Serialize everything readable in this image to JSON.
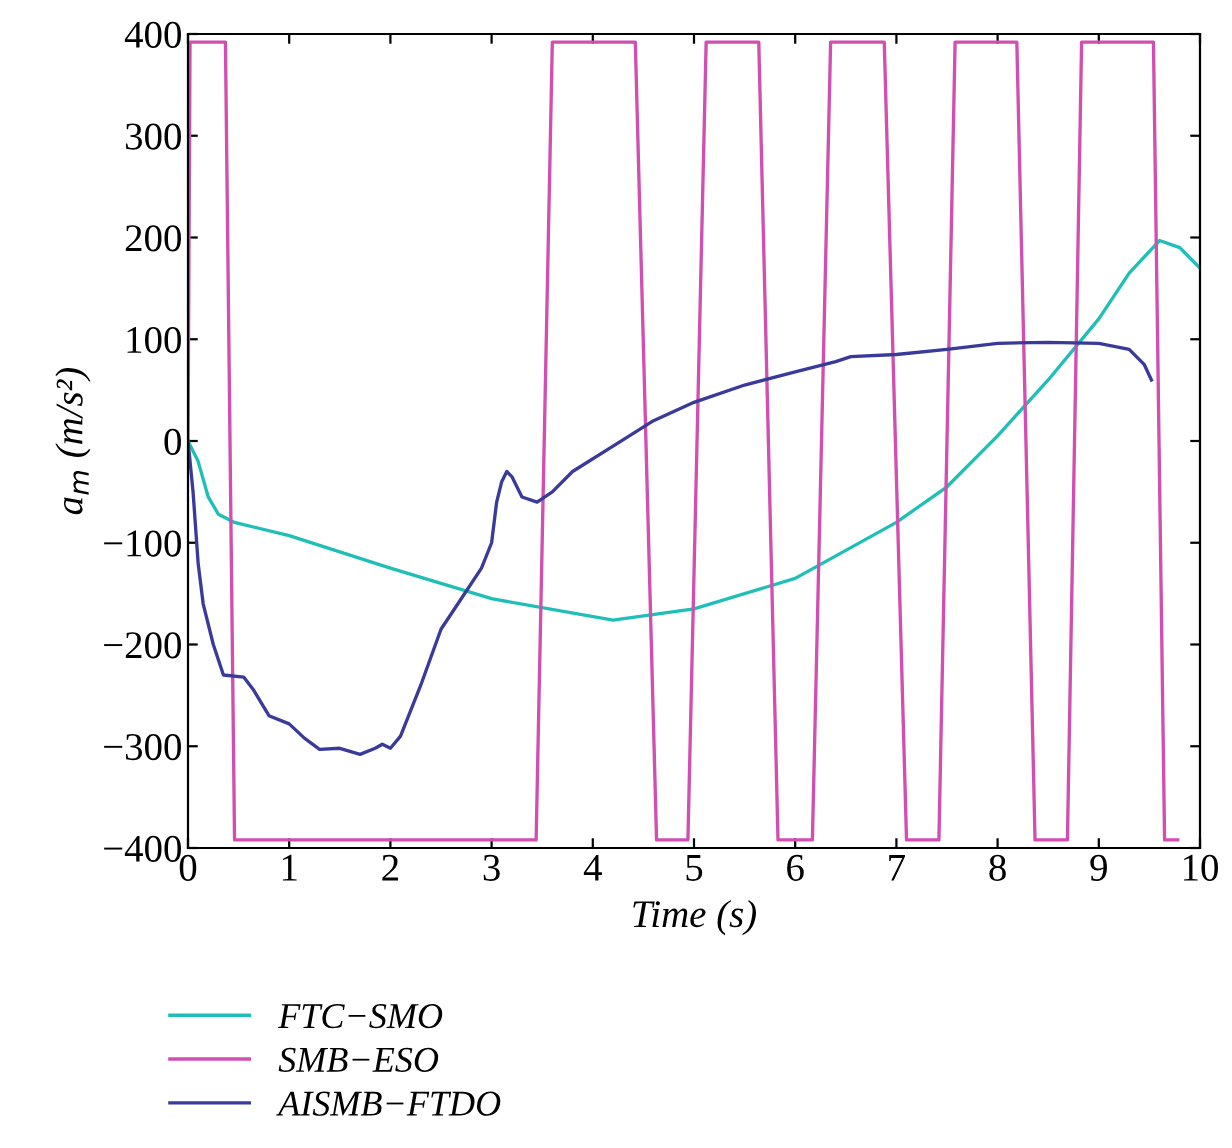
{
  "chart_data": {
    "type": "line",
    "xlabel": "Time (s)",
    "ylabel": "a$_{m}$ (m/s²)",
    "xlim": [
      0,
      10
    ],
    "xticks": [
      0,
      1,
      2,
      3,
      4,
      5,
      6,
      7,
      8,
      9,
      10
    ],
    "ylim": [
      -400,
      400
    ],
    "yticks": [
      -400,
      -300,
      -200,
      -100,
      0,
      100,
      200,
      300,
      400
    ],
    "grid": false,
    "legend": "bottom left",
    "marker": "none",
    "line_style": "solid",
    "series": [
      {
        "name": "FTC−SMO",
        "color": "#1fbfb8",
        "x": [
          0,
          0.1,
          0.2,
          0.3,
          0.46,
          1,
          2,
          3,
          4.2,
          5,
          6,
          7,
          7.5,
          8,
          8.5,
          9,
          9.3,
          9.6,
          9.8,
          10
        ],
        "values": [
          0,
          -20,
          -55,
          -72,
          -80,
          -93,
          -125,
          -155,
          -176,
          -165,
          -135,
          -80,
          -45,
          5,
          60,
          120,
          165,
          197,
          190,
          170
        ]
      },
      {
        "name": "SMB−ESO",
        "color": "#d04fb0",
        "x": [
          0,
          0.02,
          0.37,
          0.46,
          3.44,
          3.6,
          4.42,
          4.63,
          4.94,
          5.12,
          5.64,
          5.83,
          6.17,
          6.35,
          6.88,
          7.1,
          7.42,
          7.58,
          8.19,
          8.37,
          8.69,
          8.83,
          9.54,
          9.65,
          9.78
        ],
        "values": [
          0,
          392,
          392,
          -392,
          -392,
          392,
          392,
          -392,
          -392,
          392,
          392,
          -392,
          -392,
          392,
          392,
          -392,
          -392,
          392,
          392,
          -392,
          -392,
          392,
          392,
          -392,
          -392
        ]
      },
      {
        "name": "AISMB−FTDO",
        "color": "#3a3a9a",
        "x": [
          0,
          0.05,
          0.1,
          0.15,
          0.25,
          0.35,
          0.55,
          0.65,
          0.8,
          1.0,
          1.15,
          1.3,
          1.5,
          1.7,
          1.85,
          1.92,
          2.0,
          2.1,
          2.3,
          2.5,
          2.7,
          2.9,
          3.0,
          3.05,
          3.1,
          3.15,
          3.2,
          3.3,
          3.45,
          3.6,
          3.8,
          4.2,
          4.6,
          5.0,
          5.5,
          6.0,
          6.4,
          6.55,
          7,
          7.5,
          8,
          8.5,
          9,
          9.3,
          9.45,
          9.52
        ],
        "values": [
          0,
          -50,
          -120,
          -160,
          -200,
          -230,
          -232,
          -245,
          -270,
          -278,
          -292,
          -303,
          -302,
          -308,
          -302,
          -298,
          -302,
          -290,
          -240,
          -185,
          -155,
          -125,
          -100,
          -60,
          -40,
          -30,
          -35,
          -55,
          -60,
          -50,
          -30,
          -5,
          20,
          38,
          55,
          68,
          78,
          83,
          85,
          90,
          96,
          97,
          96,
          90,
          75,
          60
        ]
      }
    ]
  }
}
